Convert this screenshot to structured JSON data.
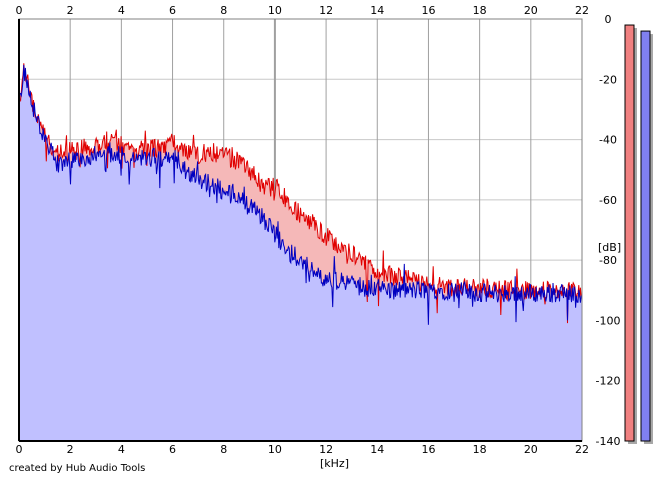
{
  "credit": "created by Hub Audio Tools",
  "chart_data": {
    "type": "area",
    "xlabel": "[kHz]",
    "ylabel": "[dB]",
    "xlim": [
      0,
      22
    ],
    "ylim": [
      -140,
      0
    ],
    "x_ticks": [
      "0",
      "2",
      "4",
      "6",
      "8",
      "10",
      "12",
      "14",
      "16",
      "18",
      "20",
      "22"
    ],
    "y_ticks": [
      "0",
      "-20",
      "-40",
      "-60",
      "-80",
      "-100",
      "-120",
      "-140"
    ],
    "grid": true,
    "legend": "none",
    "x": [
      0,
      0.2,
      0.5,
      1,
      1.5,
      2,
      2.5,
      3,
      3.5,
      4,
      4.5,
      5,
      5.5,
      6,
      6.5,
      7,
      7.5,
      8,
      8.5,
      9,
      9.5,
      10,
      10.5,
      11,
      11.5,
      12,
      12.5,
      13,
      13.5,
      14,
      14.5,
      15,
      16,
      17,
      18,
      19,
      20,
      21,
      22
    ],
    "series": [
      {
        "color": "#e00000",
        "fill": "#f5b8b8",
        "values": [
          -28,
          -16,
          -27,
          -38,
          -45,
          -44,
          -43,
          -42,
          -40,
          -42,
          -44,
          -42,
          -43,
          -41,
          -43,
          -45,
          -44,
          -45,
          -47,
          -50,
          -55,
          -56,
          -60,
          -65,
          -68,
          -72,
          -75,
          -78,
          -81,
          -84,
          -85,
          -86,
          -88,
          -89,
          -89,
          -90,
          -90,
          -90,
          -91
        ]
      },
      {
        "color": "#0000c0",
        "fill": "#c0c0ff",
        "values": [
          -30,
          -17,
          -28,
          -40,
          -48,
          -47,
          -46,
          -45,
          -44,
          -45,
          -47,
          -46,
          -46,
          -45,
          -50,
          -53,
          -55,
          -57,
          -59,
          -62,
          -66,
          -71,
          -77,
          -80,
          -84,
          -86,
          -87,
          -88,
          -89,
          -89,
          -90,
          -90,
          -90,
          -90,
          -91,
          -91,
          -91,
          -91,
          -91
        ]
      }
    ],
    "level_meters": [
      {
        "color": "#f08080",
        "value": -2
      },
      {
        "color": "#8080f0",
        "value": -4
      }
    ]
  }
}
